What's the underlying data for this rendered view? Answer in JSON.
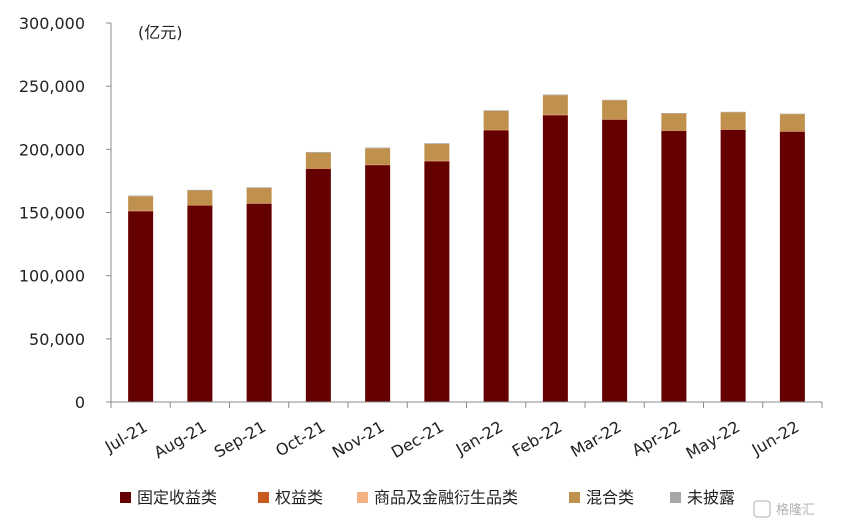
{
  "chart_data": {
    "type": "bar",
    "stacked": true,
    "unit_label": "(亿元)",
    "categories": [
      "Jul-21",
      "Aug-21",
      "Sep-21",
      "Oct-21",
      "Nov-21",
      "Dec-21",
      "Jan-22",
      "Feb-22",
      "Mar-22",
      "Apr-22",
      "May-22",
      "Jun-22"
    ],
    "ylim": [
      0,
      300000
    ],
    "yticks": [
      0,
      50000,
      100000,
      150000,
      200000,
      250000,
      300000
    ],
    "ytick_labels": [
      "0",
      "50,000",
      "100,000",
      "150,000",
      "200,000",
      "250,000",
      "300,000"
    ],
    "grid": false,
    "legend_position": "bottom",
    "series": [
      {
        "name": "固定收益类",
        "color": "#650000",
        "values": [
          151000,
          155500,
          157000,
          184500,
          187500,
          190500,
          215000,
          227000,
          223500,
          214500,
          215500,
          214000
        ]
      },
      {
        "name": "权益类",
        "color": "#c85a1e",
        "values": [
          300,
          300,
          300,
          300,
          300,
          300,
          300,
          300,
          300,
          300,
          300,
          300
        ]
      },
      {
        "name": "商品及金融衍生品类",
        "color": "#f4b183",
        "values": [
          100,
          100,
          100,
          100,
          100,
          100,
          100,
          100,
          100,
          100,
          100,
          100
        ]
      },
      {
        "name": "混合类",
        "color": "#c0904d",
        "values": [
          11500,
          11500,
          12000,
          12500,
          13000,
          13500,
          15000,
          15500,
          15000,
          13500,
          13500,
          13500
        ]
      },
      {
        "name": "未披露",
        "color": "#a6a6a6",
        "values": [
          500,
          500,
          500,
          500,
          500,
          500,
          500,
          500,
          300,
          300,
          300,
          300
        ]
      }
    ]
  },
  "watermark": {
    "text": "格隆汇"
  }
}
